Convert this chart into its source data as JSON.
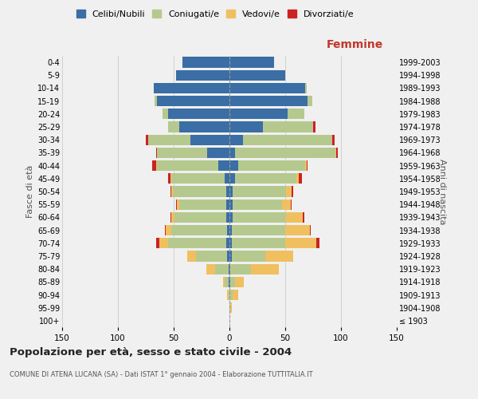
{
  "age_groups": [
    "100+",
    "95-99",
    "90-94",
    "85-89",
    "80-84",
    "75-79",
    "70-74",
    "65-69",
    "60-64",
    "55-59",
    "50-54",
    "45-49",
    "40-44",
    "35-39",
    "30-34",
    "25-29",
    "20-24",
    "15-19",
    "10-14",
    "5-9",
    "0-4"
  ],
  "birth_years": [
    "≤ 1903",
    "1904-1908",
    "1909-1913",
    "1914-1918",
    "1919-1923",
    "1924-1928",
    "1929-1933",
    "1934-1938",
    "1939-1943",
    "1944-1948",
    "1949-1953",
    "1954-1958",
    "1959-1963",
    "1964-1968",
    "1969-1973",
    "1974-1978",
    "1979-1983",
    "1984-1988",
    "1989-1993",
    "1994-1998",
    "1999-2003"
  ],
  "male": {
    "celibi": [
      0,
      0,
      0,
      1,
      1,
      2,
      3,
      2,
      3,
      3,
      3,
      4,
      10,
      20,
      35,
      45,
      55,
      65,
      68,
      48,
      42
    ],
    "coniugati": [
      0,
      0,
      1,
      3,
      12,
      28,
      52,
      50,
      46,
      42,
      48,
      48,
      55,
      45,
      38,
      10,
      5,
      2,
      0,
      0,
      0
    ],
    "vedovi": [
      0,
      0,
      1,
      2,
      8,
      8,
      8,
      5,
      3,
      2,
      1,
      1,
      1,
      0,
      0,
      0,
      0,
      0,
      0,
      0,
      0
    ],
    "divorziati": [
      0,
      0,
      0,
      0,
      0,
      0,
      3,
      1,
      1,
      1,
      1,
      2,
      3,
      1,
      2,
      0,
      0,
      0,
      0,
      0,
      0
    ]
  },
  "female": {
    "nubili": [
      0,
      0,
      0,
      1,
      1,
      2,
      2,
      2,
      3,
      3,
      3,
      5,
      8,
      5,
      12,
      30,
      52,
      70,
      68,
      50,
      40
    ],
    "coniugate": [
      0,
      1,
      3,
      4,
      18,
      30,
      48,
      48,
      48,
      44,
      48,
      55,
      60,
      90,
      80,
      45,
      15,
      4,
      1,
      0,
      0
    ],
    "vedove": [
      0,
      1,
      5,
      8,
      25,
      25,
      28,
      22,
      15,
      8,
      5,
      2,
      1,
      1,
      0,
      0,
      0,
      0,
      0,
      0,
      0
    ],
    "divorziate": [
      0,
      0,
      0,
      0,
      0,
      0,
      3,
      1,
      1,
      1,
      1,
      3,
      1,
      1,
      2,
      2,
      0,
      0,
      0,
      0,
      0
    ]
  },
  "colors": {
    "celibi": "#3a6ea5",
    "coniugati": "#b5c98e",
    "vedovi": "#f0c060",
    "divorziati": "#cc2222"
  },
  "title": "Popolazione per età, sesso e stato civile - 2004",
  "subtitle": "COMUNE DI ATENA LUCANA (SA) - Dati ISTAT 1° gennaio 2004 - Elaborazione TUTTITALIA.IT",
  "xlabel_right": "Femmine",
  "ylabel_left": "Fasce di età",
  "ylabel_right": "Anni di nascita",
  "xlim": 150,
  "legend_labels": [
    "Celibi/Nubili",
    "Coniugati/e",
    "Vedovi/e",
    "Divorziati/e"
  ],
  "bg_color": "#f0f0f0",
  "grid_color": "#cccccc"
}
